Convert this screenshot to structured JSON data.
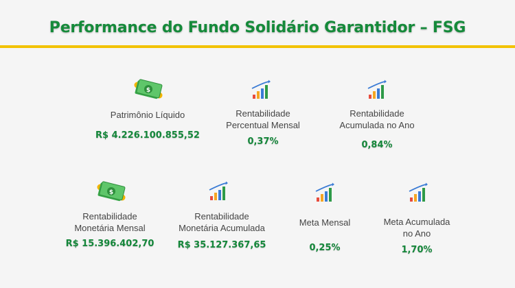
{
  "title": "Performance do Fundo Solidário Garantidor – FSG",
  "colors": {
    "title": "#158a3a",
    "value": "#14873a",
    "rule": "#f2c200",
    "label": "#444444"
  },
  "metrics": [
    {
      "icon": "money-icon",
      "label_lines": [
        "Patrimônio Líquido"
      ],
      "value": "R$ 4.226.100.855,52"
    },
    {
      "icon": "chart-icon",
      "label_lines": [
        "Rentabilidade",
        "Percentual Mensal"
      ],
      "value": "0,37%"
    },
    {
      "icon": "chart-icon",
      "label_lines": [
        "Rentabilidade",
        "Acumulada no Ano"
      ],
      "value": "0,84%"
    },
    {
      "icon": "money-icon",
      "label_lines": [
        "Rentabilidade",
        "Monetária Mensal"
      ],
      "value": "R$ 15.396.402,70"
    },
    {
      "icon": "chart-icon",
      "label_lines": [
        "Rentabilidade",
        "Monetária Acumulada"
      ],
      "value": "R$ 35.127.367,65"
    },
    {
      "icon": "chart-icon",
      "label_lines": [
        "Meta Mensal"
      ],
      "value": "0,25%"
    },
    {
      "icon": "chart-icon",
      "label_lines": [
        "Meta Acumulada",
        "no Ano"
      ],
      "value": "1,70%"
    }
  ]
}
